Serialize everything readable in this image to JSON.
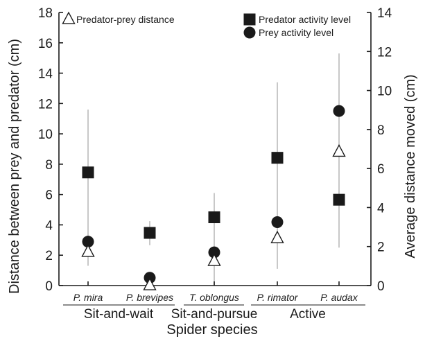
{
  "chart_data": {
    "type": "scatter",
    "xlabel": "Spider species",
    "ylabel_left": "Distance between prey and predator (cm)",
    "ylabel_right": "Average distance moved (cm)",
    "ylim_left": [
      0,
      18
    ],
    "yticks_left": [
      "0",
      "2",
      "4",
      "6",
      "8",
      "10",
      "12",
      "14",
      "16",
      "18"
    ],
    "ylim_right": [
      0,
      14
    ],
    "yticks_right": [
      "0",
      "2",
      "4",
      "6",
      "8",
      "10",
      "12",
      "14"
    ],
    "categories": [
      "P. mira",
      "P. brevipes",
      "T. oblongus",
      "P. rimator",
      "P. audax"
    ],
    "groups": [
      {
        "label": "Sit-and-wait",
        "categories": [
          "P. mira",
          "P. brevipes"
        ]
      },
      {
        "label": "Sit-and-pursue",
        "categories": [
          "T. oblongus"
        ]
      },
      {
        "label": "Active",
        "categories": [
          "P. rimator",
          "P. audax"
        ]
      }
    ],
    "series": [
      {
        "name": "Predator-prey distance",
        "marker": "open-triangle",
        "axis": "left",
        "values": [
          2.2,
          0.0,
          1.6,
          3.1,
          8.8
        ],
        "error_low": [
          1.3,
          0.0,
          0.0,
          1.1,
          2.5
        ],
        "error_high": [
          11.6,
          0.0,
          6.1,
          13.4,
          15.3
        ]
      },
      {
        "name": "Predator activity level",
        "marker": "filled-square",
        "axis": "right",
        "values": [
          5.8,
          2.7,
          3.5,
          6.55,
          4.4
        ],
        "error_low": [
          null,
          2.07,
          null,
          null,
          null
        ],
        "error_high": [
          null,
          3.3,
          null,
          null,
          null
        ]
      },
      {
        "name": "Prey activity level",
        "marker": "filled-circle",
        "axis": "right",
        "values": [
          2.25,
          0.4,
          1.7,
          3.25,
          8.95
        ]
      }
    ],
    "legend": {
      "left": [
        "Predator-prey distance"
      ],
      "right": [
        "Predator activity level",
        "Prey activity level"
      ],
      "placement": "top"
    },
    "grid": false
  }
}
